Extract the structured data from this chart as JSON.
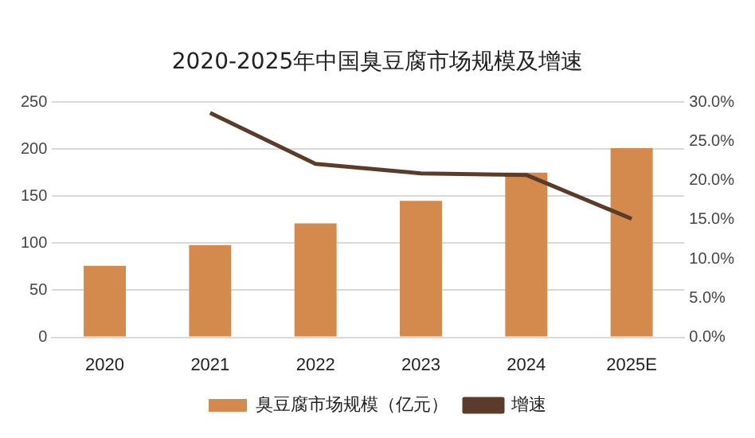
{
  "chart_data": {
    "type": "bar",
    "title": "2020-2025年中国臭豆腐市场规模及增速",
    "categories": [
      "2020",
      "2021",
      "2022",
      "2023",
      "2024",
      "2025E"
    ],
    "series": [
      {
        "name": "臭豆腐市场规模（亿元）",
        "color": "#d48a4c",
        "values": [
          76,
          98,
          121,
          145,
          175,
          201
        ]
      },
      {
        "name": "增速",
        "type": "line",
        "axis": "y2",
        "color": "#5b3b29",
        "values": [
          null,
          28.6,
          22.1,
          20.9,
          20.7,
          15.1
        ]
      }
    ],
    "ylim": [
      0,
      250
    ],
    "yticks": [
      0,
      50,
      100,
      150,
      200,
      250
    ],
    "y2lim": [
      0,
      30
    ],
    "y2ticks": [
      {
        "value": 0,
        "label": "0.0%"
      },
      {
        "value": 5,
        "label": "5.0%"
      },
      {
        "value": 10,
        "label": "10.0%"
      },
      {
        "value": 15,
        "label": "15.0%"
      },
      {
        "value": 20,
        "label": "20.0%"
      },
      {
        "value": 25,
        "label": "25.0%"
      },
      {
        "value": 30,
        "label": "30.0%"
      }
    ],
    "grid": "y",
    "legend": "bottom",
    "marker": "none",
    "line_style": "solid"
  }
}
